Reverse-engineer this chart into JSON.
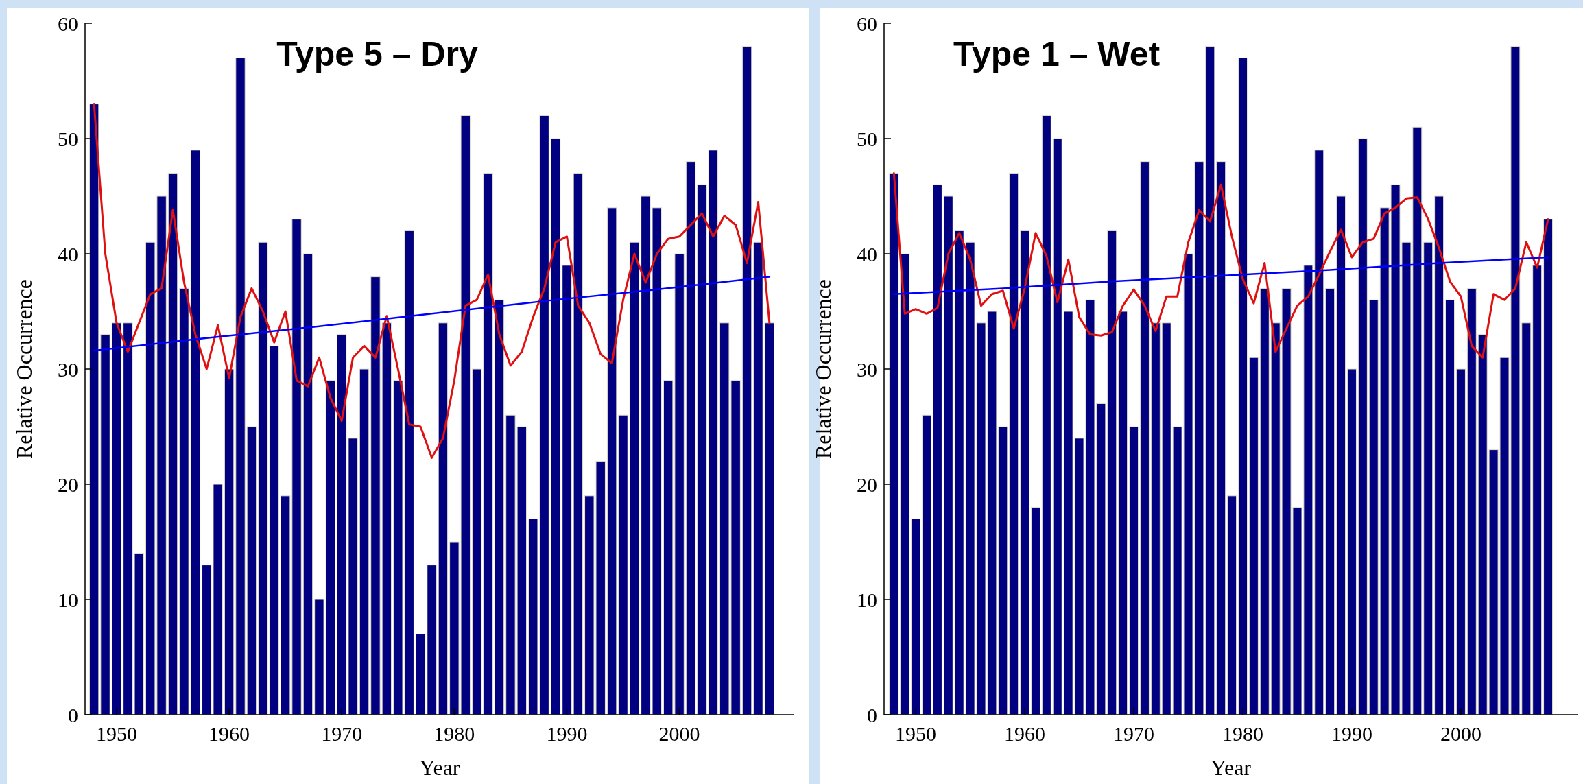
{
  "chart_data": [
    {
      "type": "bar",
      "title": "Type 5 – Dry",
      "xlabel": "Year",
      "ylabel": "Relative Occurrence",
      "x": [
        1948,
        1949,
        1950,
        1951,
        1952,
        1953,
        1954,
        1955,
        1956,
        1957,
        1958,
        1959,
        1960,
        1961,
        1962,
        1963,
        1964,
        1965,
        1966,
        1967,
        1968,
        1969,
        1970,
        1971,
        1972,
        1973,
        1974,
        1975,
        1976,
        1977,
        1978,
        1979,
        1980,
        1981,
        1982,
        1983,
        1984,
        1985,
        1986,
        1987,
        1988,
        1989,
        1990,
        1991,
        1992,
        1993,
        1994,
        1995,
        1996,
        1997,
        1998,
        1999,
        2000,
        2001,
        2002,
        2003,
        2004,
        2005,
        2006,
        2007,
        2008
      ],
      "series": [
        {
          "color": "#000080",
          "values": [
            53,
            33,
            34,
            34,
            14,
            41,
            45,
            47,
            37,
            49,
            13,
            20,
            30,
            57,
            25,
            41,
            32,
            19,
            43,
            40,
            10,
            29,
            33,
            24,
            30,
            38,
            34,
            29,
            42,
            7,
            13,
            34,
            15,
            52,
            30,
            47,
            36,
            26,
            25,
            17,
            52,
            50,
            39,
            47,
            19,
            22,
            44,
            26,
            41,
            45,
            44,
            29,
            40,
            48,
            46,
            49,
            34,
            29,
            58,
            41,
            34
          ]
        },
        {
          "type": "line",
          "color": "#e01010",
          "values": [
            53,
            40,
            34,
            31.5,
            34,
            36.5,
            37,
            43.8,
            37.5,
            33,
            30,
            33.8,
            29.2,
            34.5,
            37,
            35,
            32.3,
            35,
            29,
            28.5,
            31,
            27.5,
            25.5,
            31,
            32,
            31,
            34.6,
            30,
            25.2,
            25,
            22.3,
            24,
            29,
            35.5,
            36,
            38.2,
            33,
            30.3,
            31.5,
            34.5,
            37,
            41,
            41.5,
            35.5,
            34,
            31.3,
            30.5,
            36,
            40,
            37.5,
            40,
            41.3,
            41.5,
            42.5,
            43.5,
            41.5,
            43.3,
            42.5,
            39.2,
            44.5,
            34
          ]
        },
        {
          "type": "line",
          "color": "#0000ff",
          "x": [
            1948,
            1958,
            1968,
            1978,
            1988,
            1998,
            2008
          ],
          "values": [
            31.6,
            32.7,
            33.7,
            34.8,
            35.9,
            36.9,
            38.0
          ]
        }
      ],
      "xlim": [
        1947.2,
        2010.2
      ],
      "ylim": [
        0,
        60
      ],
      "xticks": [
        1950,
        1960,
        1970,
        1980,
        1990,
        2000
      ],
      "yticks": [
        0,
        10,
        20,
        30,
        40,
        50,
        60
      ],
      "grid": false
    },
    {
      "type": "bar",
      "title": "Type 1 – Wet",
      "xlabel": "Year",
      "ylabel": "Relative Occurrence",
      "x": [
        1948,
        1949,
        1950,
        1951,
        1952,
        1953,
        1954,
        1955,
        1956,
        1957,
        1958,
        1959,
        1960,
        1961,
        1962,
        1963,
        1964,
        1965,
        1966,
        1967,
        1968,
        1969,
        1970,
        1971,
        1972,
        1973,
        1974,
        1975,
        1976,
        1977,
        1978,
        1979,
        1980,
        1981,
        1982,
        1983,
        1984,
        1985,
        1986,
        1987,
        1988,
        1989,
        1990,
        1991,
        1992,
        1993,
        1994,
        1995,
        1996,
        1997,
        1998,
        1999,
        2000,
        2001,
        2002,
        2003,
        2004,
        2005,
        2006,
        2007,
        2008
      ],
      "series": [
        {
          "color": "#000080",
          "values": [
            47,
            40,
            17,
            26,
            46,
            45,
            42,
            41,
            34,
            35,
            25,
            47,
            42,
            18,
            52,
            50,
            35,
            24,
            36,
            27,
            42,
            35,
            25,
            48,
            34,
            34,
            25,
            40,
            48,
            58,
            48,
            19,
            57,
            31,
            37,
            34,
            37,
            18,
            39,
            49,
            37,
            45,
            30,
            50,
            36,
            44,
            46,
            41,
            51,
            41,
            45,
            36,
            30,
            37,
            33,
            23,
            31,
            58,
            34,
            39,
            43
          ]
        },
        {
          "type": "line",
          "color": "#e01010",
          "values": [
            47,
            34.8,
            35.2,
            34.8,
            35.3,
            40,
            41.8,
            39.5,
            35.5,
            36.5,
            36.8,
            33.5,
            37,
            41.8,
            39.8,
            35.8,
            39.5,
            34.5,
            33,
            32.9,
            33.2,
            35.5,
            36.9,
            35.5,
            33.3,
            36.3,
            36.3,
            41,
            43.8,
            42.8,
            46,
            41.5,
            37.8,
            35.7,
            39.2,
            31.5,
            33.5,
            35.5,
            36.3,
            38.2,
            40.2,
            42.1,
            39.7,
            41,
            41.3,
            43.5,
            44,
            44.8,
            44.9,
            43,
            40.5,
            37.6,
            36.3,
            32,
            31,
            36.5,
            36,
            37,
            41,
            38.8,
            43
          ]
        },
        {
          "type": "line",
          "color": "#0000ff",
          "x": [
            1948,
            1958,
            1968,
            1978,
            1988,
            1998,
            2008
          ],
          "values": [
            36.5,
            37.0,
            37.6,
            38.1,
            38.6,
            39.2,
            39.7
          ]
        }
      ],
      "xlim": [
        1947.1,
        2010.7
      ],
      "ylim": [
        0,
        60
      ],
      "xticks": [
        1950,
        1960,
        1970,
        1980,
        1990,
        2000
      ],
      "yticks": [
        0,
        10,
        20,
        30,
        40,
        50,
        60
      ],
      "grid": false
    }
  ]
}
